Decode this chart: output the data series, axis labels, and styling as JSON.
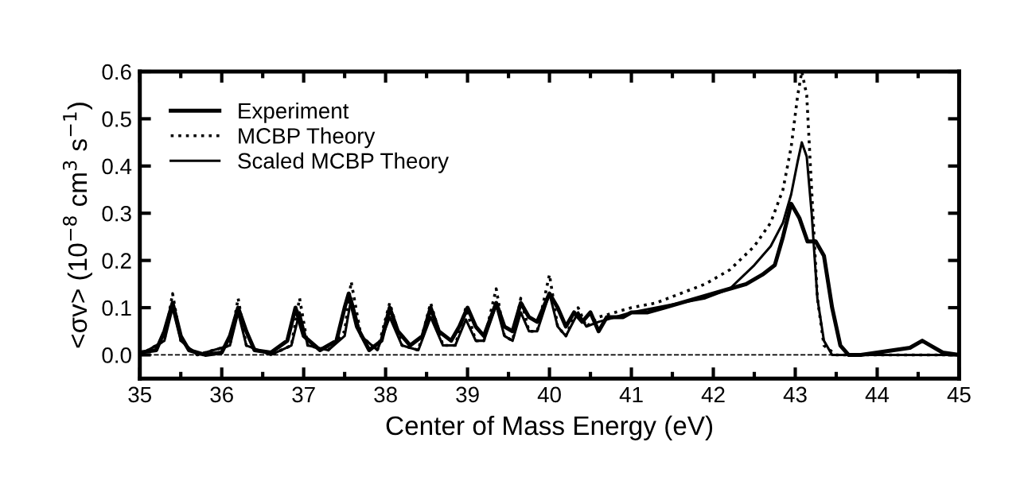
{
  "chart_data": {
    "type": "line",
    "xlabel": "Center of Mass Energy (eV)",
    "ylabel": "<σv> (10$^{−8}$ cm$^{3}$ s$^{−1}$)",
    "xlim": [
      35,
      45
    ],
    "ylim": [
      -0.05,
      0.6
    ],
    "xticks": [
      35,
      36,
      37,
      38,
      39,
      40,
      41,
      42,
      43,
      44,
      45
    ],
    "yticks": [
      {
        "value": 0,
        "label": "0.0"
      },
      {
        "value": 0.1,
        "label": "0.1"
      },
      {
        "value": 0.2,
        "label": "0.2"
      },
      {
        "value": 0.3,
        "label": "0.3"
      },
      {
        "value": 0.4,
        "label": "0.4"
      },
      {
        "value": 0.5,
        "label": "0.5"
      },
      {
        "value": 0.6,
        "label": "0.6"
      }
    ],
    "grid": false,
    "legend": "top left",
    "ref_lines": [
      {
        "axis": "y",
        "value": 0,
        "color": "#000000",
        "line_style": "dashed"
      }
    ],
    "series": [
      {
        "name": "Experiment",
        "color": "#000000",
        "line_style": "solid",
        "x": [
          35.0,
          35.2,
          35.3,
          35.4,
          35.5,
          35.6,
          35.8,
          36.0,
          36.1,
          36.2,
          36.3,
          36.4,
          36.6,
          36.8,
          36.9,
          37.0,
          37.2,
          37.4,
          37.5,
          37.55,
          37.65,
          37.8,
          37.95,
          38.05,
          38.15,
          38.3,
          38.45,
          38.55,
          38.65,
          38.8,
          38.9,
          39.0,
          39.1,
          39.2,
          39.35,
          39.45,
          39.55,
          39.65,
          39.75,
          39.85,
          40.0,
          40.1,
          40.2,
          40.3,
          40.4,
          40.5,
          40.6,
          40.7,
          40.9,
          41.0,
          41.2,
          41.4,
          41.6,
          41.8,
          42.0,
          42.2,
          42.4,
          42.6,
          42.75,
          42.85,
          42.95,
          43.05,
          43.15,
          43.25,
          43.35,
          43.45,
          43.55,
          43.65,
          43.8,
          44.0,
          44.2,
          44.4,
          44.55,
          44.65,
          44.8,
          45.0
        ],
        "values": [
          0.005,
          0.01,
          0.05,
          0.11,
          0.04,
          0.01,
          0.0,
          0.005,
          0.04,
          0.1,
          0.05,
          0.01,
          0.005,
          0.03,
          0.1,
          0.04,
          0.01,
          0.03,
          0.1,
          0.13,
          0.06,
          0.01,
          0.03,
          0.1,
          0.05,
          0.02,
          0.04,
          0.1,
          0.05,
          0.03,
          0.06,
          0.1,
          0.06,
          0.04,
          0.11,
          0.06,
          0.05,
          0.11,
          0.08,
          0.07,
          0.13,
          0.1,
          0.06,
          0.09,
          0.07,
          0.09,
          0.05,
          0.08,
          0.08,
          0.09,
          0.09,
          0.1,
          0.11,
          0.12,
          0.13,
          0.14,
          0.15,
          0.17,
          0.19,
          0.25,
          0.32,
          0.29,
          0.24,
          0.24,
          0.21,
          0.1,
          0.02,
          0.0,
          0.0,
          0.005,
          0.01,
          0.015,
          0.03,
          0.02,
          0.005,
          0.0
        ]
      },
      {
        "name": "MCBP Theory",
        "color": "#000000",
        "line_style": "dotted",
        "x": [
          35.0,
          35.3,
          35.4,
          35.5,
          35.7,
          36.1,
          36.2,
          36.3,
          36.6,
          36.85,
          36.95,
          37.05,
          37.3,
          37.5,
          37.58,
          37.7,
          37.9,
          38.05,
          38.2,
          38.4,
          38.55,
          38.7,
          38.85,
          38.98,
          39.1,
          39.2,
          39.35,
          39.45,
          39.55,
          39.65,
          39.75,
          39.85,
          40.0,
          40.1,
          40.2,
          40.35,
          40.45,
          40.6,
          40.8,
          41.0,
          41.3,
          41.6,
          41.9,
          42.2,
          42.5,
          42.7,
          42.85,
          42.95,
          43.03,
          43.08,
          43.14,
          43.2,
          43.27,
          43.35,
          43.5,
          45.0
        ],
        "values": [
          0.0,
          0.03,
          0.13,
          0.03,
          0.0,
          0.02,
          0.12,
          0.02,
          0.0,
          0.02,
          0.12,
          0.02,
          0.01,
          0.05,
          0.155,
          0.04,
          0.01,
          0.11,
          0.02,
          0.01,
          0.11,
          0.02,
          0.02,
          0.1,
          0.03,
          0.03,
          0.14,
          0.04,
          0.03,
          0.12,
          0.05,
          0.05,
          0.17,
          0.06,
          0.04,
          0.1,
          0.06,
          0.08,
          0.09,
          0.1,
          0.11,
          0.13,
          0.15,
          0.18,
          0.23,
          0.28,
          0.35,
          0.44,
          0.55,
          0.6,
          0.55,
          0.35,
          0.12,
          0.02,
          0.0,
          0.0
        ]
      },
      {
        "name": "Scaled MCBP Theory",
        "color": "#000000",
        "line_style": "solid",
        "x": [
          35.0,
          35.3,
          35.4,
          35.5,
          35.7,
          36.1,
          36.2,
          36.3,
          36.6,
          36.85,
          36.95,
          37.05,
          37.3,
          37.5,
          37.58,
          37.7,
          37.9,
          38.05,
          38.2,
          38.4,
          38.55,
          38.7,
          38.85,
          38.98,
          39.1,
          39.2,
          39.35,
          39.45,
          39.55,
          39.65,
          39.75,
          39.85,
          40.0,
          40.1,
          40.2,
          40.35,
          40.45,
          40.6,
          40.8,
          41.0,
          41.3,
          41.6,
          41.9,
          42.2,
          42.5,
          42.7,
          42.85,
          42.95,
          43.03,
          43.08,
          43.14,
          43.2,
          43.27,
          43.35,
          43.45,
          45.0
        ],
        "values": [
          0.0,
          0.03,
          0.1,
          0.03,
          0.0,
          0.02,
          0.09,
          0.02,
          0.0,
          0.02,
          0.09,
          0.02,
          0.01,
          0.04,
          0.12,
          0.04,
          0.01,
          0.08,
          0.02,
          0.01,
          0.08,
          0.02,
          0.02,
          0.075,
          0.03,
          0.03,
          0.105,
          0.04,
          0.03,
          0.09,
          0.05,
          0.05,
          0.13,
          0.06,
          0.04,
          0.09,
          0.06,
          0.07,
          0.08,
          0.09,
          0.1,
          0.11,
          0.12,
          0.14,
          0.19,
          0.23,
          0.28,
          0.34,
          0.41,
          0.45,
          0.42,
          0.3,
          0.12,
          0.03,
          0.0,
          0.0
        ]
      }
    ]
  }
}
